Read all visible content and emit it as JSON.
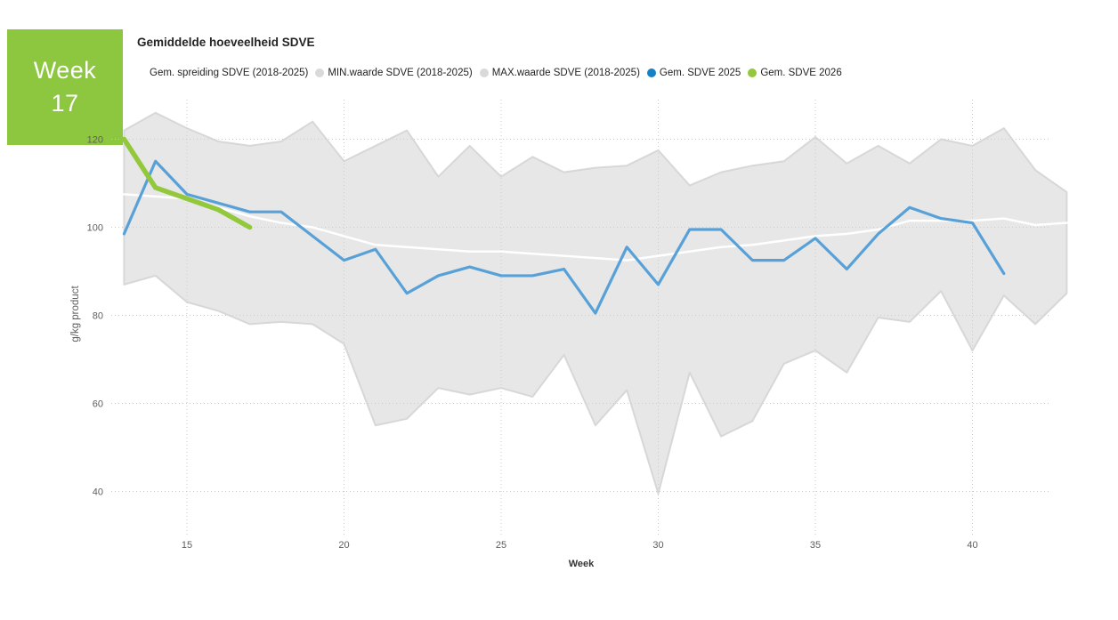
{
  "badge": {
    "line1": "Week",
    "line2": "17",
    "bg_color": "#8dc63f"
  },
  "chart": {
    "title": "Gemiddelde hoeveelheid SDVE",
    "legend": [
      {
        "label": "Gem. spreiding SDVE (2018-2025)",
        "color": "none"
      },
      {
        "label": "MIN.waarde SDVE (2018-2025)",
        "color": "#d9d9d9"
      },
      {
        "label": "MAX.waarde SDVE (2018-2025)",
        "color": "#d9d9d9"
      },
      {
        "label": "Gem. SDVE 2025",
        "color": "#1581c5"
      },
      {
        "label": "Gem. SDVE 2026",
        "color": "#93c83c"
      }
    ]
  },
  "chart_data": {
    "type": "line",
    "title": "Gemiddelde hoeveelheid SDVE",
    "xlabel": "Week",
    "ylabel": "g/kg product",
    "x_ticks": [
      15,
      20,
      25,
      30,
      35,
      40
    ],
    "y_ticks": [
      40,
      60,
      80,
      100,
      120
    ],
    "xlim": [
      13,
      42.5
    ],
    "ylim": [
      30,
      129
    ],
    "grid": "dotted",
    "legend_position": "top",
    "band_weeks": [
      13,
      14,
      15,
      16,
      17,
      18,
      19,
      20,
      21,
      22,
      23,
      24,
      25,
      26,
      27,
      28,
      29,
      30,
      31,
      32,
      33,
      34,
      35,
      36,
      37,
      38,
      39,
      40,
      41,
      42,
      43
    ],
    "series": [
      {
        "name": "MAX.waarde SDVE (2018-2025)",
        "role": "band-max",
        "color": "#d0d0d0",
        "values": [
          122,
          126,
          122.5,
          119.5,
          118.5,
          119.5,
          124,
          115,
          118.5,
          122,
          111.5,
          118.5,
          111.5,
          116,
          112.5,
          113.5,
          114,
          117.5,
          109.5,
          112.5,
          114,
          115,
          120.5,
          114.5,
          118.5,
          114.5,
          120,
          118.5,
          122.5,
          113,
          108
        ]
      },
      {
        "name": "MIN.waarde SDVE (2018-2025)",
        "role": "band-min",
        "color": "#d0d0d0",
        "values": [
          87,
          89,
          83,
          81,
          78,
          78.5,
          78,
          73.5,
          55,
          56.5,
          63.5,
          62,
          63.5,
          61.5,
          71,
          55,
          63,
          39.5,
          67,
          52.5,
          56,
          69,
          72,
          67,
          79.5,
          78.5,
          85.5,
          72,
          84.5,
          78,
          85
        ]
      },
      {
        "name": "Gem. spreiding SDVE (2018-2025)",
        "role": "line",
        "color": "#ffffff",
        "width": 2.5,
        "x": [
          13,
          14,
          15,
          16,
          17,
          18,
          19,
          20,
          21,
          22,
          23,
          24,
          25,
          26,
          27,
          28,
          29,
          30,
          31,
          32,
          33,
          34,
          35,
          36,
          37,
          38,
          39,
          40,
          41,
          42,
          43
        ],
        "values": [
          107.5,
          107,
          106.5,
          104.5,
          102.5,
          101,
          100,
          98,
          96,
          95.5,
          95,
          94.5,
          94.5,
          94,
          93.5,
          93,
          92.5,
          93.5,
          94.5,
          95.5,
          96,
          97,
          98,
          98.5,
          99.5,
          101.5,
          101.5,
          101.5,
          102,
          100.5,
          101
        ]
      },
      {
        "name": "Gem. SDVE 2025",
        "role": "line",
        "color": "#58a1d8",
        "width": 3.2,
        "x": [
          13,
          14,
          15,
          16,
          17,
          18,
          19,
          20,
          21,
          22,
          23,
          24,
          25,
          26,
          27,
          28,
          29,
          30,
          31,
          32,
          33,
          34,
          35,
          36,
          37,
          38,
          39,
          40,
          41
        ],
        "values": [
          98.5,
          115,
          107.5,
          105.5,
          103.5,
          103.5,
          98,
          92.5,
          95,
          85,
          89,
          91,
          89,
          89,
          90.5,
          80.5,
          95.5,
          87,
          99.5,
          99.5,
          92.5,
          92.5,
          97.5,
          90.5,
          98.5,
          104.5,
          102,
          101,
          89.5
        ]
      },
      {
        "name": "Gem. SDVE 2026",
        "role": "line",
        "color": "#93c83c",
        "width": 5.5,
        "x": [
          13,
          14,
          15,
          16,
          17
        ],
        "values": [
          120,
          109,
          106.5,
          104,
          100
        ]
      }
    ]
  }
}
